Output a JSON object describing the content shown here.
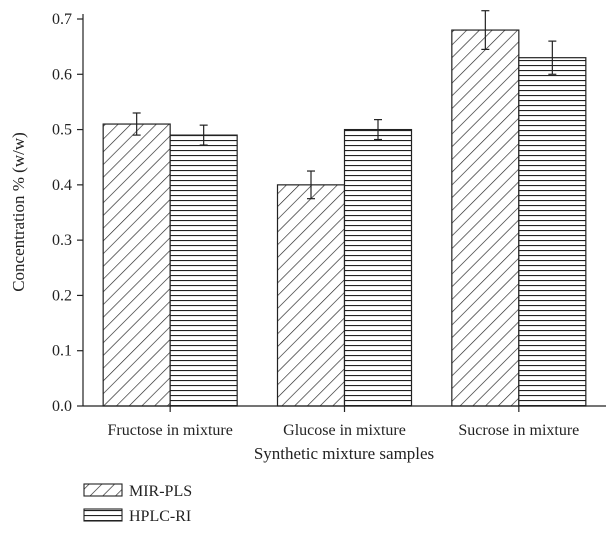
{
  "chart_data": {
    "type": "bar",
    "title": "",
    "xlabel": "Synthetic mixture samples",
    "ylabel": "Concentration % (w/w)",
    "ylim": [
      0,
      0.75
    ],
    "yticks": [
      "0.0",
      "0.1",
      "0.2",
      "0.3",
      "0.4",
      "0.5",
      "0.6",
      "0.7"
    ],
    "categories": [
      "Fructose in mixture",
      "Glucose in mixture",
      "Sucrose in mixture"
    ],
    "series": [
      {
        "name": "MIR-PLS",
        "values": [
          0.51,
          0.4,
          0.68
        ],
        "errors": [
          0.02,
          0.025,
          0.035
        ],
        "pattern": "diagonal-hatch"
      },
      {
        "name": "HPLC-RI",
        "values": [
          0.49,
          0.5,
          0.63
        ],
        "errors": [
          0.018,
          0.018,
          0.03
        ],
        "pattern": "horizontal-hatch"
      }
    ],
    "grid": false,
    "legend_position": "bottom-left",
    "colors": {
      "stroke": "#222222",
      "background": "#ffffff"
    }
  }
}
